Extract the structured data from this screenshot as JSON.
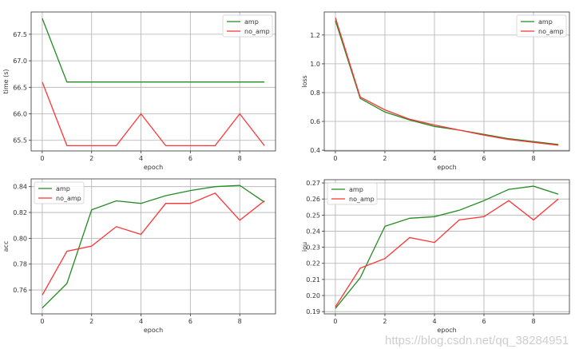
{
  "chart_data": [
    {
      "type": "line",
      "xlabel": "epoch",
      "ylabel": "time (s)",
      "x": [
        0,
        1,
        2,
        3,
        4,
        5,
        6,
        7,
        8,
        9
      ],
      "xlim": [
        -0.45,
        9.45
      ],
      "ylim": [
        65.3,
        67.92
      ],
      "xticks": [
        0,
        2,
        4,
        6,
        8
      ],
      "yticks": [
        65.5,
        66.0,
        66.5,
        67.0,
        67.5
      ],
      "ytick_labels": [
        "65.5",
        "66.0",
        "66.5",
        "67.0",
        "67.5"
      ],
      "grid": true,
      "legend": "top-right",
      "series": [
        {
          "name": "amp",
          "color": "#228B22",
          "values": [
            67.8,
            66.6,
            66.6,
            66.6,
            66.6,
            66.6,
            66.6,
            66.6,
            66.6,
            66.6
          ]
        },
        {
          "name": "no_amp",
          "color": "#FF3333",
          "values": [
            66.6,
            65.4,
            65.4,
            65.4,
            66.0,
            65.4,
            65.4,
            65.4,
            66.0,
            65.4
          ]
        }
      ]
    },
    {
      "type": "line",
      "xlabel": "epoch",
      "ylabel": "loss",
      "x": [
        0,
        1,
        2,
        3,
        4,
        5,
        6,
        7,
        8,
        9
      ],
      "xlim": [
        -0.45,
        9.45
      ],
      "ylim": [
        0.395,
        1.36
      ],
      "xticks": [
        0,
        2,
        4,
        6,
        8
      ],
      "yticks": [
        0.4,
        0.6,
        0.8,
        1.0,
        1.2
      ],
      "ytick_labels": [
        "0.4",
        "0.6",
        "0.8",
        "1.0",
        "1.2"
      ],
      "grid": true,
      "legend": "top-right",
      "series": [
        {
          "name": "amp",
          "color": "#228B22",
          "values": [
            1.3,
            0.76,
            0.665,
            0.61,
            0.565,
            0.54,
            0.51,
            0.48,
            0.46,
            0.44
          ]
        },
        {
          "name": "no_amp",
          "color": "#FF3333",
          "values": [
            1.32,
            0.77,
            0.68,
            0.615,
            0.575,
            0.54,
            0.505,
            0.475,
            0.455,
            0.435
          ]
        }
      ]
    },
    {
      "type": "line",
      "xlabel": "epoch",
      "ylabel": "acc",
      "x": [
        0,
        1,
        2,
        3,
        4,
        5,
        6,
        7,
        8,
        9
      ],
      "xlim": [
        -0.45,
        9.45
      ],
      "ylim": [
        0.7415,
        0.846
      ],
      "xticks": [
        0,
        2,
        4,
        6,
        8
      ],
      "yticks": [
        0.76,
        0.78,
        0.8,
        0.82,
        0.84
      ],
      "ytick_labels": [
        "0.76",
        "0.78",
        "0.80",
        "0.82",
        "0.84"
      ],
      "grid": true,
      "legend": "top-left",
      "series": [
        {
          "name": "amp",
          "color": "#228B22",
          "values": [
            0.746,
            0.765,
            0.822,
            0.829,
            0.827,
            0.833,
            0.837,
            0.84,
            0.841,
            0.828
          ]
        },
        {
          "name": "no_amp",
          "color": "#FF3333",
          "values": [
            0.756,
            0.79,
            0.794,
            0.809,
            0.803,
            0.827,
            0.827,
            0.835,
            0.814,
            0.829
          ]
        }
      ]
    },
    {
      "type": "line",
      "xlabel": "epoch",
      "ylabel": "iou",
      "x": [
        0,
        1,
        2,
        3,
        4,
        5,
        6,
        7,
        8,
        9
      ],
      "xlim": [
        -0.45,
        9.45
      ],
      "ylim": [
        0.1886,
        0.272
      ],
      "xticks": [
        0,
        2,
        4,
        6,
        8
      ],
      "yticks": [
        0.19,
        0.2,
        0.21,
        0.22,
        0.23,
        0.24,
        0.25,
        0.26,
        0.27
      ],
      "ytick_labels": [
        "0.19",
        "0.20",
        "0.21",
        "0.22",
        "0.23",
        "0.24",
        "0.25",
        "0.26",
        "0.27"
      ],
      "grid": true,
      "legend": "top-left",
      "series": [
        {
          "name": "amp",
          "color": "#228B22",
          "values": [
            0.192,
            0.211,
            0.243,
            0.248,
            0.249,
            0.253,
            0.259,
            0.266,
            0.268,
            0.263
          ]
        },
        {
          "name": "no_amp",
          "color": "#FF3333",
          "values": [
            0.193,
            0.217,
            0.223,
            0.236,
            0.233,
            0.247,
            0.249,
            0.259,
            0.247,
            0.26
          ]
        }
      ]
    }
  ],
  "watermark": "https://blog.csdn.net/qq_38284951"
}
